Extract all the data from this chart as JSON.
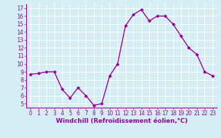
{
  "x": [
    0,
    1,
    2,
    3,
    4,
    5,
    6,
    7,
    8,
    9,
    10,
    11,
    12,
    13,
    14,
    15,
    16,
    17,
    18,
    19,
    20,
    21,
    22,
    23
  ],
  "y": [
    8.7,
    8.8,
    9.0,
    9.0,
    6.8,
    5.7,
    7.0,
    6.0,
    4.8,
    5.0,
    8.5,
    10.0,
    14.8,
    16.2,
    16.8,
    15.4,
    16.0,
    16.0,
    15.0,
    13.5,
    12.0,
    11.2,
    9.0,
    8.5
  ],
  "line_color": "#990099",
  "marker": "D",
  "marker_size": 2.2,
  "line_width": 1.0,
  "xlabel": "Windchill (Refroidissement éolien,°C)",
  "xlabel_fontsize": 6.5,
  "ylim": [
    4.5,
    17.5
  ],
  "xlim": [
    -0.5,
    23.5
  ],
  "yticks": [
    5,
    6,
    7,
    8,
    9,
    10,
    11,
    12,
    13,
    14,
    15,
    16,
    17
  ],
  "xticks": [
    0,
    1,
    2,
    3,
    4,
    5,
    6,
    7,
    8,
    9,
    10,
    11,
    12,
    13,
    14,
    15,
    16,
    17,
    18,
    19,
    20,
    21,
    22,
    23
  ],
  "bg_color": "#d5eef5",
  "grid_color": "#b8dce8",
  "tick_color": "#990099",
  "tick_fontsize": 5.5,
  "xlabel_color": "#990099"
}
